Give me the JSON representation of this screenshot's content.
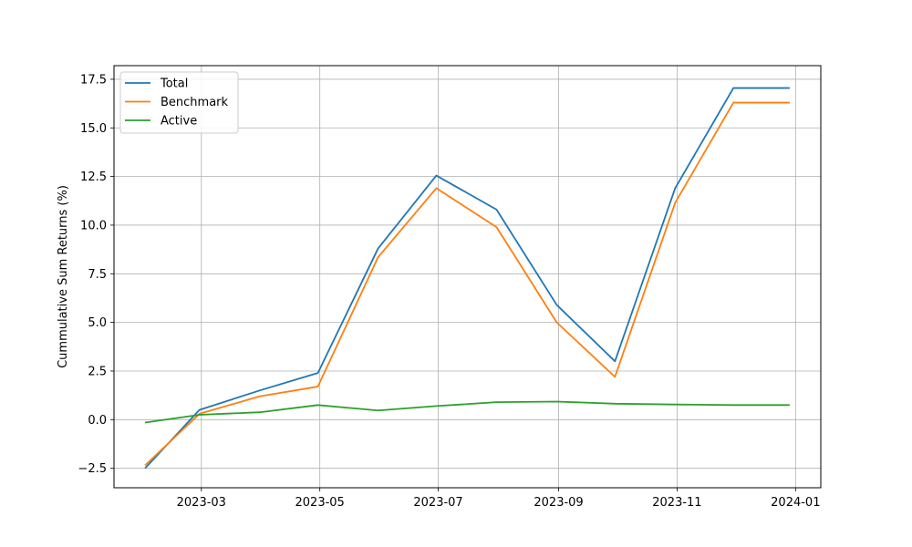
{
  "chart_data": {
    "type": "line",
    "title": "",
    "xlabel": "",
    "ylabel": "Cummulative Sum Returns (%)",
    "grid": true,
    "legend_position": "top-left",
    "x": [
      "2023-01-31",
      "2023-02-28",
      "2023-03-31",
      "2023-04-30",
      "2023-05-31",
      "2023-06-30",
      "2023-07-31",
      "2023-08-31",
      "2023-09-30",
      "2023-10-31",
      "2023-11-30",
      "2023-12-29"
    ],
    "xlim": [
      "2023-01-15",
      "2024-01-14"
    ],
    "xticks": [
      "2023-03-01",
      "2023-05-01",
      "2023-07-01",
      "2023-09-01",
      "2023-11-01",
      "2024-01-01"
    ],
    "xtick_labels": [
      "2023-03",
      "2023-05",
      "2023-07",
      "2023-09",
      "2023-11",
      "2024-01"
    ],
    "ylim": [
      -3.5,
      18.2
    ],
    "yticks": [
      -2.5,
      0.0,
      2.5,
      5.0,
      7.5,
      10.0,
      12.5,
      15.0,
      17.5
    ],
    "ytick_labels": [
      "−2.5",
      "0.0",
      "2.5",
      "5.0",
      "7.5",
      "10.0",
      "12.5",
      "15.0",
      "17.5"
    ],
    "series": [
      {
        "name": "Total",
        "color": "#1f77b4",
        "values": [
          -2.5,
          0.5,
          1.5,
          2.4,
          8.8,
          12.55,
          10.8,
          5.9,
          3.0,
          11.9,
          17.05,
          17.05
        ]
      },
      {
        "name": "Benchmark",
        "color": "#ff7f0e",
        "values": [
          -2.35,
          0.3,
          1.2,
          1.7,
          8.35,
          11.9,
          9.9,
          5.0,
          2.2,
          11.15,
          16.3,
          16.3
        ]
      },
      {
        "name": "Active",
        "color": "#2ca02c",
        "values": [
          -0.15,
          0.25,
          0.38,
          0.75,
          0.47,
          0.7,
          0.9,
          0.93,
          0.82,
          0.78,
          0.75,
          0.75
        ]
      }
    ]
  }
}
